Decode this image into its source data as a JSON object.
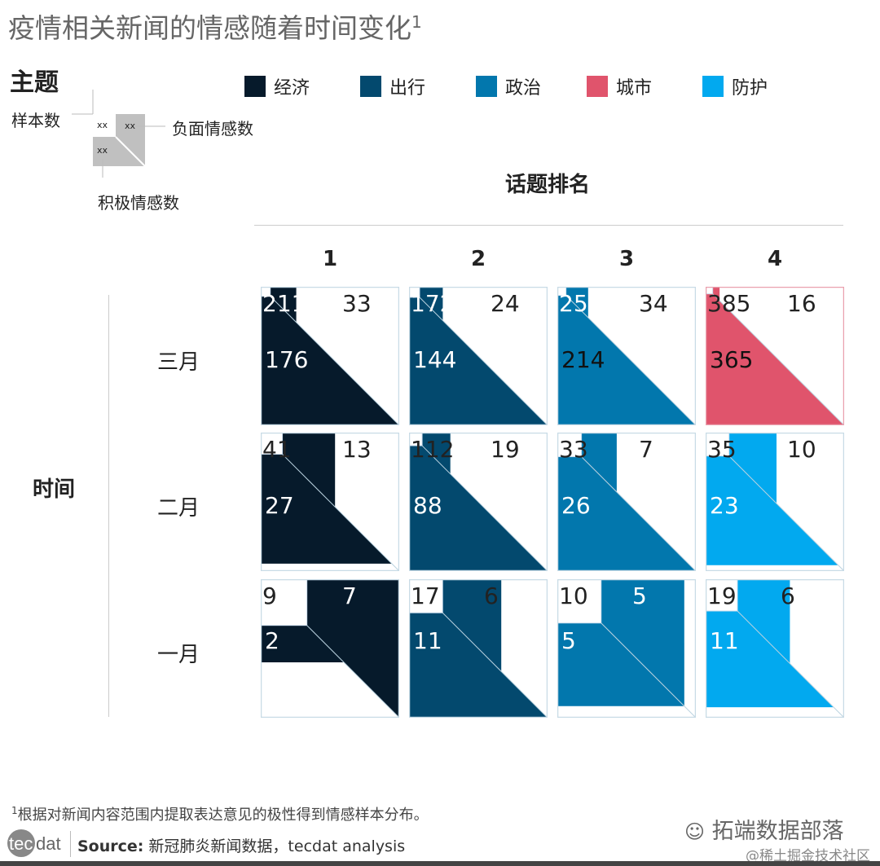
{
  "title": "疫情相关新闻的情感随着时间变化",
  "title_footnote_mark": "1",
  "key": {
    "heading": "主题",
    "sample_label": "样本数",
    "negative_label": "负面情感数",
    "positive_label": "积极情感数",
    "placeholder": "xx"
  },
  "legend": [
    {
      "name": "经济",
      "color": "#061a2b"
    },
    {
      "name": "出行",
      "color": "#03496e"
    },
    {
      "name": "政治",
      "color": "#0277ad"
    },
    {
      "name": "城市",
      "color": "#e0546c"
    },
    {
      "name": "防护",
      "color": "#02a9ef"
    }
  ],
  "chart_data": {
    "type": "heatmap",
    "title": "疫情相关新闻的情感随着时间变化",
    "x_title": "话题排名",
    "y_title": "时间",
    "columns": [
      "1",
      "2",
      "3",
      "4"
    ],
    "rows": [
      "三月",
      "二月",
      "一月"
    ],
    "cells": [
      [
        {
          "topic": "经济",
          "sample": 211,
          "negative": 33,
          "positive": 176
        },
        {
          "topic": "出行",
          "sample": 172,
          "negative": 24,
          "positive": 144
        },
        {
          "topic": "政治",
          "sample": 255,
          "negative": 34,
          "positive": 214
        },
        {
          "topic": "城市",
          "sample": 385,
          "negative": 16,
          "positive": 365
        }
      ],
      [
        {
          "topic": "经济",
          "sample": 41,
          "negative": 13,
          "positive": 27
        },
        {
          "topic": "出行",
          "sample": 112,
          "negative": 19,
          "positive": 88
        },
        {
          "topic": "政治",
          "sample": 33,
          "negative": 7,
          "positive": 26
        },
        {
          "topic": "防护",
          "sample": 35,
          "negative": 10,
          "positive": 23
        }
      ],
      [
        {
          "topic": "经济",
          "sample": 9,
          "negative": 7,
          "positive": 2
        },
        {
          "topic": "出行",
          "sample": 17,
          "negative": 6,
          "positive": 11
        },
        {
          "topic": "政治",
          "sample": 10,
          "negative": 5,
          "positive": 5
        },
        {
          "topic": "防护",
          "sample": 19,
          "negative": 6,
          "positive": 11
        }
      ]
    ]
  },
  "footer": {
    "footnote_mark": "1",
    "footnote": "根据对新闻内容范围内提取表达意见的极性得到情感样本分布。",
    "source_label": "Source:",
    "source_text": " 新冠肺炎新闻数据，tecdat analysis",
    "logo": "tecdat",
    "wechat": "拓端数据部落",
    "juejin": "@稀土掘金技术社区"
  }
}
